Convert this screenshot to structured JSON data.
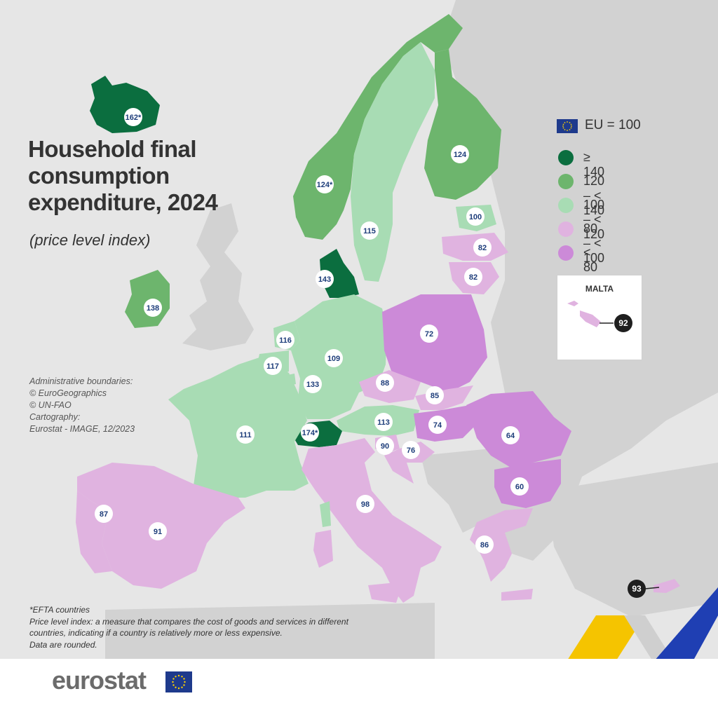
{
  "title_lines": [
    "Household final",
    "consumption",
    "expenditure, 2024"
  ],
  "subtitle": "(price level index)",
  "legend": {
    "eu_label": "EU = 100",
    "classes": [
      {
        "label": "≥ 140",
        "color": "#0b6e3f"
      },
      {
        "label": "120 – < 140",
        "color": "#6db56d"
      },
      {
        "label": "100 – < 120",
        "color": "#a8dcb4"
      },
      {
        "label": "80 – < 100",
        "color": "#e0b3e0"
      },
      {
        "label": "< 80",
        "color": "#cc8ad8"
      }
    ]
  },
  "malta_title": "MALTA",
  "attribution": [
    "Administrative boundaries:",
    "© EuroGeographics",
    "© UN-FAO",
    "Cartography:",
    "Eurostat - IMAGE, 12/2023"
  ],
  "footnotes": [
    "*EFTA countries",
    "Price level index: a measure that compares the cost of goods and services in different countries, indicating if a country is relatively more or less expensive.",
    "Data are rounded."
  ],
  "logo": "eurostat",
  "values": {
    "is": "162*",
    "no": "124*",
    "se": "115",
    "fi": "124",
    "ee": "100",
    "lv": "82",
    "lt": "82",
    "dk": "143",
    "ie": "138",
    "nl": "116",
    "be": "117",
    "lu": "133",
    "de": "109",
    "pl": "72",
    "cz": "88",
    "sk": "85",
    "at": "113",
    "hu": "74",
    "ro": "64",
    "bg": "60",
    "ch": "174*",
    "fr": "111",
    "si": "90",
    "hr": "76",
    "it": "98",
    "es": "91",
    "pt": "87",
    "gr": "86",
    "mt": "92",
    "cy": "93"
  }
}
